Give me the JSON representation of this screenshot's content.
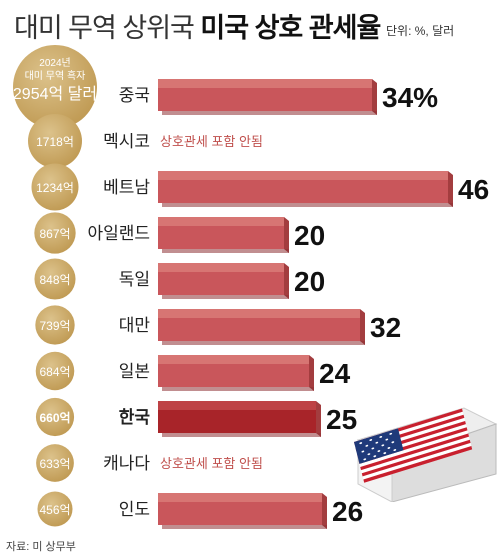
{
  "title": {
    "normal": "대미 무역 상위국",
    "bold": "미국 상호 관세율"
  },
  "unit": "단위: %, 달러",
  "source": "자료: 미 상무부",
  "colors": {
    "bar": "#c9565b",
    "bar_top": "#d97a78",
    "bar_side": "#a33d3f",
    "bar_highlight": "#a82429",
    "bar_highlight_top": "#c2484a",
    "bubble": "#bf9952",
    "bubble_light": "#dcc28b",
    "no_tariff_text": "#c0504d"
  },
  "chart_data": {
    "type": "bar",
    "orientation": "horizontal",
    "title": "미국 상호 관세율",
    "unit": "%",
    "xlim": [
      0,
      46
    ],
    "bubble_header": "2024년\n대미 무역 흑자\n2954억 달러",
    "categories": [
      "중국",
      "멕시코",
      "베트남",
      "아일랜드",
      "독일",
      "대만",
      "일본",
      "한국",
      "캐나다",
      "인도"
    ],
    "values": [
      34,
      null,
      46,
      20,
      20,
      32,
      24,
      25,
      null,
      26
    ],
    "value_labels": [
      "34%",
      "",
      "46",
      "20",
      "20",
      "32",
      "24",
      "25",
      "",
      "26"
    ],
    "notes": [
      "",
      "상호관세 포함 안됨",
      "",
      "",
      "",
      "",
      "",
      "",
      "상호관세 포함 안됨",
      ""
    ],
    "trade_surplus": [
      "2954억 달러",
      "1718억",
      "1234억",
      "867억",
      "848억",
      "739억",
      "684억",
      "660억",
      "633억",
      "456억"
    ],
    "trade_surplus_values": [
      2954,
      1718,
      1234,
      867,
      848,
      739,
      684,
      660,
      633,
      456
    ],
    "highlight": "한국"
  }
}
